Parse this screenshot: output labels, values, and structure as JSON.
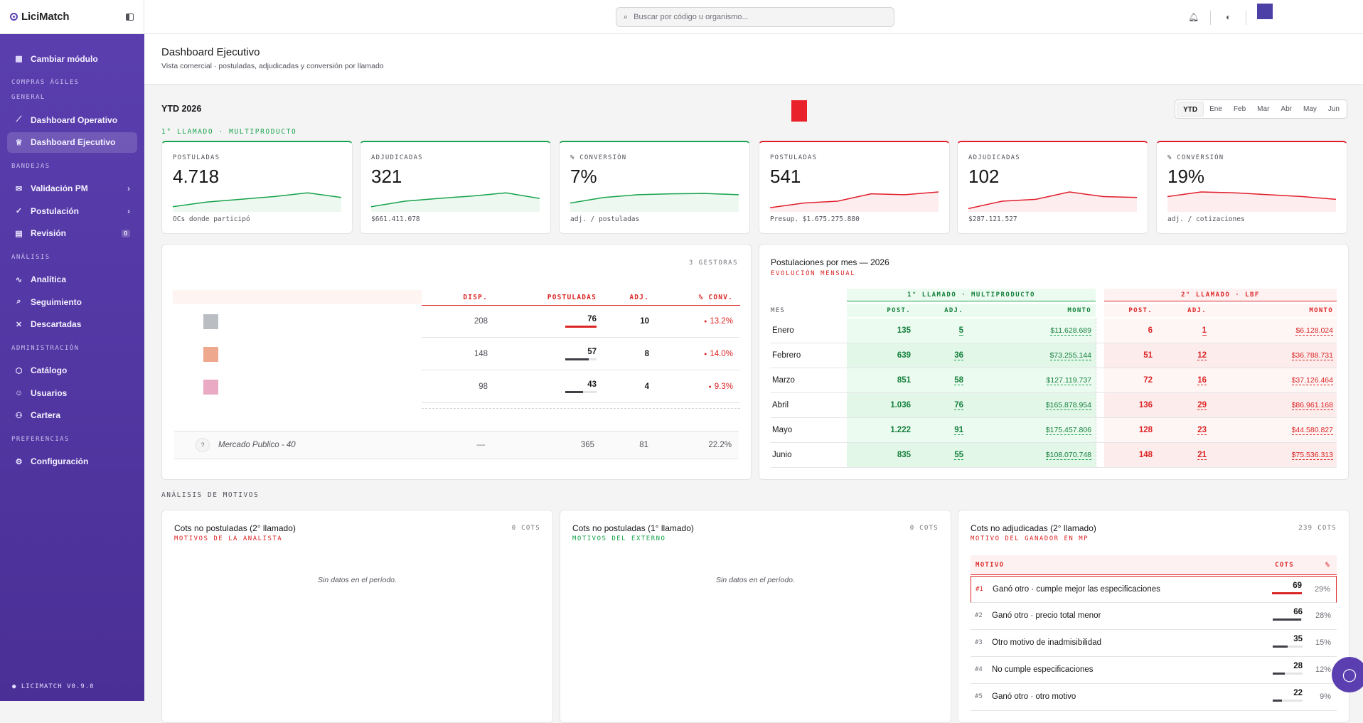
{
  "brand": {
    "name": "LiciMatch"
  },
  "sidebar": {
    "change_module": "Cambiar módulo",
    "sections": {
      "compras": "COMPRAS ÁGILES",
      "general": "GENERAL",
      "bandejas": "BANDEJAS",
      "analisis": "ANÁLISIS",
      "admin": "ADMINISTRACIÓN",
      "prefs": "PREFERENCIAS"
    },
    "items": {
      "dash_op": "Dashboard Operativo",
      "dash_ej": "Dashboard Ejecutivo",
      "validacion": "Validación PM",
      "postulacion": "Postulación",
      "revision": "Revisión",
      "revision_count": "0",
      "analitica": "Analítica",
      "seguimiento": "Seguimiento",
      "descartadas": "Descartadas",
      "catalogo": "Catálogo",
      "usuarios": "Usuarios",
      "cartera": "Cartera",
      "configuracion": "Configuración"
    },
    "version": "LICIMATCH V0.9.0"
  },
  "topbar": {
    "search_placeholder": "Buscar por código u organismo..."
  },
  "header": {
    "title": "Dashboard Ejecutivo",
    "subtitle": "Vista comercial · postuladas, adjudicadas y conversión por llamado"
  },
  "period": {
    "title": "YTD 2026",
    "filters": [
      "YTD",
      "Ene",
      "Feb",
      "Mar",
      "Abr",
      "May",
      "Jun"
    ],
    "active": "YTD"
  },
  "llamado1_label": "1° LLAMADO · MULTIPRODUCTO",
  "kpis": [
    {
      "label": "POSTULADAS",
      "value": "4.718",
      "sub": "OCs donde participó",
      "color": "#16a34a",
      "trend": [
        0.2,
        0.45,
        0.6,
        0.75,
        0.95,
        0.7
      ]
    },
    {
      "label": "ADJUDICADAS",
      "value": "321",
      "sub": "$661.411.078",
      "color": "#16a34a",
      "trend": [
        0.2,
        0.5,
        0.65,
        0.78,
        0.95,
        0.65
      ]
    },
    {
      "label": "% CONVERSIÓN",
      "value": "7%",
      "sub": "adj. / postuladas",
      "color": "#16a34a",
      "trend": [
        0.4,
        0.7,
        0.85,
        0.9,
        0.92,
        0.85
      ]
    },
    {
      "label": "POSTULADAS",
      "value": "541",
      "sub": "Presup. $1.675.275.880",
      "color": "#e11d2a",
      "trend": [
        0.15,
        0.4,
        0.5,
        0.9,
        0.85,
        1.0
      ]
    },
    {
      "label": "ADJUDICADAS",
      "value": "102",
      "sub": "$287.121.527",
      "color": "#e11d2a",
      "trend": [
        0.1,
        0.5,
        0.6,
        1.0,
        0.75,
        0.7
      ]
    },
    {
      "label": "% CONVERSIÓN",
      "value": "19%",
      "sub": "adj. / cotizaciones",
      "color": "#e11d2a",
      "trend": [
        0.75,
        1.0,
        0.95,
        0.85,
        0.75,
        0.6
      ]
    }
  ],
  "gestoras": {
    "count_label": "3 GESTORAS",
    "columns": [
      "DISP.",
      "POSTULADAS",
      "ADJ.",
      "% CONV."
    ],
    "rows": [
      {
        "color": "#babec3",
        "disp": "208",
        "post": "76",
        "adj": "10",
        "conv": "13.2%",
        "bar": 1.0,
        "bar_color": "#dc2626"
      },
      {
        "color": "#eda88e",
        "disp": "148",
        "post": "57",
        "adj": "8",
        "conv": "14.0%",
        "bar": 0.75,
        "bar_color": "#3f3f46"
      },
      {
        "color": "#eaaac4",
        "disp": "98",
        "post": "43",
        "adj": "4",
        "conv": "9.3%",
        "bar": 0.57,
        "bar_color": "#3f3f46"
      }
    ],
    "mercado": {
      "icon": "?",
      "name": "Mercado Publico - 40",
      "disp": "—",
      "post": "365",
      "adj": "81",
      "conv": "22.2%"
    }
  },
  "mensual": {
    "title": "Postulaciones por mes — 2026",
    "subtitle": "EVOLUCIÓN MENSUAL",
    "group1": "1° LLAMADO · MULTIPRODUCTO",
    "group2": "2° LLAMADO · LBF",
    "col_mes": "MES",
    "cols": [
      "POST.",
      "ADJ.",
      "MONTO"
    ],
    "rows": [
      {
        "mes": "Enero",
        "p1": "135",
        "a1": "5",
        "m1": "$11.628.689",
        "p2": "6",
        "a2": "1",
        "m2": "$6.128.024"
      },
      {
        "mes": "Febrero",
        "p1": "639",
        "a1": "36",
        "m1": "$73.255.144",
        "p2": "51",
        "a2": "12",
        "m2": "$36.788.731"
      },
      {
        "mes": "Marzo",
        "p1": "851",
        "a1": "58",
        "m1": "$127.119.737",
        "p2": "72",
        "a2": "16",
        "m2": "$37.126.464"
      },
      {
        "mes": "Abril",
        "p1": "1.036",
        "a1": "76",
        "m1": "$165.878.954",
        "p2": "136",
        "a2": "29",
        "m2": "$86.961.168"
      },
      {
        "mes": "Mayo",
        "p1": "1.222",
        "a1": "91",
        "m1": "$175.457.806",
        "p2": "128",
        "a2": "23",
        "m2": "$44.580.827"
      },
      {
        "mes": "Junio",
        "p1": "835",
        "a1": "55",
        "m1": "$108.070.748",
        "p2": "148",
        "a2": "21",
        "m2": "$75.536.313"
      }
    ]
  },
  "motivos": {
    "label": "ANÁLISIS DE MOTIVOS",
    "card1": {
      "title": "Cots no postuladas (2° llamado)",
      "subtitle": "MOTIVOS DE LA ANALISTA",
      "count": "0 COTS",
      "empty": "Sin datos en el período."
    },
    "card2": {
      "title": "Cots no postuladas (1° llamado)",
      "subtitle": "MOTIVOS DEL EXTERNO",
      "count": "0 COTS",
      "empty": "Sin datos en el período."
    },
    "card3": {
      "title": "Cots no adjudicadas (2° llamado)",
      "subtitle": "MOTIVO DEL GANADOR EN MP",
      "count": "239 COTS",
      "cols": [
        "MOTIVO",
        "COTS",
        "%"
      ],
      "rows": [
        {
          "rank": "#1",
          "motivo": "Ganó otro · cumple mejor las especificaciones",
          "cots": "69",
          "pct": "29%",
          "bar": 1.0
        },
        {
          "rank": "#2",
          "motivo": "Ganó otro · precio total menor",
          "cots": "66",
          "pct": "28%",
          "bar": 0.95
        },
        {
          "rank": "#3",
          "motivo": "Otro motivo de inadmisibilidad",
          "cots": "35",
          "pct": "15%",
          "bar": 0.5
        },
        {
          "rank": "#4",
          "motivo": "No cumple especificaciones",
          "cots": "28",
          "pct": "12%",
          "bar": 0.4
        },
        {
          "rank": "#5",
          "motivo": "Ganó otro · otro motivo",
          "cots": "22",
          "pct": "9%",
          "bar": 0.32
        }
      ]
    }
  }
}
